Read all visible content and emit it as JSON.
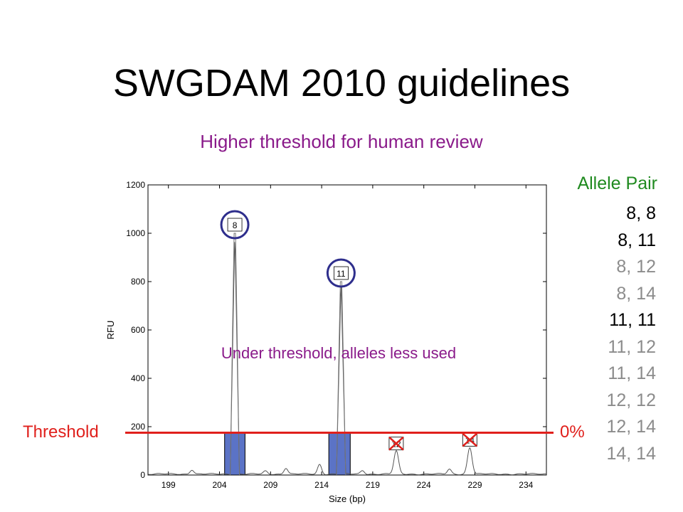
{
  "title": "SWGDAM 2010 guidelines",
  "subtitle": "Higher threshold for human review",
  "annotation_under": "Under threshold, alleles less used",
  "threshold_label": "Threshold",
  "threshold_percent": "0%",
  "allele_header": "Allele Pair",
  "allele_pairs": [
    {
      "text": "8,   8",
      "color": "#000000"
    },
    {
      "text": "8, 11",
      "color": "#000000"
    },
    {
      "text": "8, 12",
      "color": "#8c8c8c"
    },
    {
      "text": "8, 14",
      "color": "#8c8c8c"
    },
    {
      "text": "11, 11",
      "color": "#000000"
    },
    {
      "text": "11, 12",
      "color": "#8c8c8c"
    },
    {
      "text": "11, 14",
      "color": "#8c8c8c"
    },
    {
      "text": "12, 12",
      "color": "#8c8c8c"
    },
    {
      "text": "12, 14",
      "color": "#8c8c8c"
    },
    {
      "text": "14, 14",
      "color": "#8c8c8c"
    }
  ],
  "colors": {
    "threshold": "#e0201c",
    "bar": "#5b73c6",
    "circle": "#2e2e8c",
    "cross": "#e0201c",
    "subtitle": "#8a1a8a",
    "header": "#1f8a1f"
  },
  "chart_data": {
    "type": "line",
    "xlabel": "Size (bp)",
    "ylabel": "RFU",
    "xlim": [
      197,
      236
    ],
    "ylim": [
      0,
      1200
    ],
    "xticks": [
      199,
      204,
      209,
      214,
      219,
      224,
      229,
      234
    ],
    "yticks": [
      0,
      200,
      400,
      600,
      800,
      1000,
      1200
    ],
    "threshold": 175,
    "peaks": [
      {
        "label": "8",
        "x": 205.5,
        "height": 1000,
        "width": 0.9,
        "status": "above"
      },
      {
        "label": "11",
        "x": 215.9,
        "height": 800,
        "width": 0.9,
        "status": "above"
      },
      {
        "label": "12",
        "x": 221.3,
        "height": 95,
        "width": 0.8,
        "status": "below"
      },
      {
        "label": "14",
        "x": 228.5,
        "height": 110,
        "width": 0.8,
        "status": "below"
      }
    ],
    "bars": [
      {
        "x0": 204.5,
        "x1": 206.5,
        "height": 175
      },
      {
        "x0": 214.7,
        "x1": 216.8,
        "height": 175
      }
    ],
    "minor_bumps": [
      {
        "x": 201.3,
        "height": 18
      },
      {
        "x": 208.5,
        "height": 12
      },
      {
        "x": 210.5,
        "height": 25
      },
      {
        "x": 213.8,
        "height": 40
      },
      {
        "x": 218.0,
        "height": 15
      },
      {
        "x": 226.5,
        "height": 20
      }
    ]
  }
}
